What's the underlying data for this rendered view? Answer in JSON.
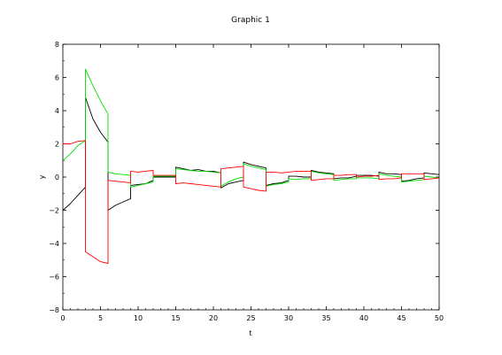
{
  "chart_data": {
    "type": "line",
    "title": "Graphic 1",
    "xlabel": "t",
    "ylabel": "y",
    "xlim": [
      0,
      50
    ],
    "ylim": [
      -8,
      8
    ],
    "x_ticks": [
      0,
      5,
      10,
      15,
      20,
      25,
      30,
      35,
      40,
      45,
      50
    ],
    "y_ticks": [
      -8,
      -6,
      -4,
      -2,
      0,
      2,
      4,
      6,
      8
    ],
    "grid": false,
    "legend": "none",
    "series": [
      {
        "color": "#000000",
        "points": [
          [
            0,
            -2.0
          ],
          [
            1,
            -1.6
          ],
          [
            2,
            -1.1
          ],
          [
            3,
            -0.6
          ],
          [
            3,
            4.8
          ],
          [
            4,
            3.5
          ],
          [
            5,
            2.7
          ],
          [
            6,
            2.1
          ],
          [
            6,
            -2.0
          ],
          [
            7,
            -1.7
          ],
          [
            8,
            -1.5
          ],
          [
            9,
            -1.3
          ],
          [
            9,
            -0.5
          ],
          [
            10,
            -0.45
          ],
          [
            11,
            -0.4
          ],
          [
            12,
            -0.2
          ],
          [
            12,
            0.0
          ],
          [
            13,
            0.0
          ],
          [
            14,
            0.0
          ],
          [
            15,
            0.0
          ],
          [
            15,
            0.6
          ],
          [
            16,
            0.5
          ],
          [
            17,
            0.4
          ],
          [
            18,
            0.45
          ],
          [
            19,
            0.35
          ],
          [
            20,
            0.35
          ],
          [
            21,
            0.25
          ],
          [
            21,
            -0.65
          ],
          [
            22,
            -0.4
          ],
          [
            23,
            -0.3
          ],
          [
            24,
            -0.2
          ],
          [
            24,
            0.9
          ],
          [
            25,
            0.75
          ],
          [
            26,
            0.65
          ],
          [
            27,
            0.55
          ],
          [
            27,
            -0.5
          ],
          [
            28,
            -0.4
          ],
          [
            29,
            -0.35
          ],
          [
            30,
            -0.2
          ],
          [
            30,
            0.05
          ],
          [
            31,
            0.05
          ],
          [
            32,
            0.0
          ],
          [
            33,
            0.0
          ],
          [
            33,
            0.4
          ],
          [
            34,
            0.3
          ],
          [
            35,
            0.25
          ],
          [
            36,
            0.2
          ],
          [
            36,
            -0.1
          ],
          [
            37,
            -0.05
          ],
          [
            38,
            -0.05
          ],
          [
            39,
            0.05
          ],
          [
            39,
            0.1
          ],
          [
            40,
            0.1
          ],
          [
            41,
            0.1
          ],
          [
            42,
            0.05
          ],
          [
            42,
            0.3
          ],
          [
            43,
            0.2
          ],
          [
            44,
            0.2
          ],
          [
            45,
            0.15
          ],
          [
            45,
            -0.25
          ],
          [
            46,
            -0.2
          ],
          [
            47,
            -0.1
          ],
          [
            48,
            -0.05
          ],
          [
            48,
            0.25
          ],
          [
            49,
            0.2
          ],
          [
            50,
            0.15
          ]
        ]
      },
      {
        "color": "#00e000",
        "points": [
          [
            0,
            1.0
          ],
          [
            1,
            1.4
          ],
          [
            2,
            1.9
          ],
          [
            3,
            2.2
          ],
          [
            3,
            6.5
          ],
          [
            4,
            5.5
          ],
          [
            5,
            4.6
          ],
          [
            6,
            3.8
          ],
          [
            6,
            0.3
          ],
          [
            7,
            0.2
          ],
          [
            8,
            0.15
          ],
          [
            9,
            0.1
          ],
          [
            9,
            -0.6
          ],
          [
            10,
            -0.5
          ],
          [
            11,
            -0.4
          ],
          [
            12,
            -0.3
          ],
          [
            12,
            0.05
          ],
          [
            13,
            0.05
          ],
          [
            14,
            0.05
          ],
          [
            15,
            0.05
          ],
          [
            15,
            0.5
          ],
          [
            16,
            0.45
          ],
          [
            17,
            0.4
          ],
          [
            18,
            0.35
          ],
          [
            19,
            0.35
          ],
          [
            20,
            0.3
          ],
          [
            21,
            0.25
          ],
          [
            21,
            -0.55
          ],
          [
            22,
            -0.3
          ],
          [
            23,
            -0.1
          ],
          [
            24,
            0.0
          ],
          [
            24,
            0.8
          ],
          [
            25,
            0.65
          ],
          [
            26,
            0.55
          ],
          [
            27,
            0.45
          ],
          [
            27,
            -0.55
          ],
          [
            28,
            -0.45
          ],
          [
            29,
            -0.4
          ],
          [
            30,
            -0.3
          ],
          [
            30,
            -0.1
          ],
          [
            31,
            -0.15
          ],
          [
            32,
            -0.1
          ],
          [
            33,
            -0.1
          ],
          [
            33,
            0.35
          ],
          [
            34,
            0.25
          ],
          [
            35,
            0.2
          ],
          [
            36,
            0.15
          ],
          [
            36,
            -0.2
          ],
          [
            37,
            -0.15
          ],
          [
            38,
            -0.1
          ],
          [
            39,
            -0.1
          ],
          [
            39,
            -0.05
          ],
          [
            40,
            -0.05
          ],
          [
            41,
            -0.05
          ],
          [
            42,
            -0.1
          ],
          [
            42,
            0.2
          ],
          [
            43,
            0.1
          ],
          [
            44,
            0.05
          ],
          [
            45,
            0.0
          ],
          [
            45,
            -0.3
          ],
          [
            46,
            -0.25
          ],
          [
            47,
            -0.2
          ],
          [
            48,
            -0.15
          ],
          [
            48,
            0.05
          ],
          [
            49,
            0.0
          ],
          [
            50,
            -0.05
          ]
        ]
      },
      {
        "color": "#ff0000",
        "points": [
          [
            0,
            2.0
          ],
          [
            1,
            2.0
          ],
          [
            2,
            2.15
          ],
          [
            3,
            2.2
          ],
          [
            3,
            -4.5
          ],
          [
            4,
            -4.8
          ],
          [
            5,
            -5.1
          ],
          [
            6,
            -5.2
          ],
          [
            6,
            -0.2
          ],
          [
            7,
            -0.25
          ],
          [
            8,
            -0.3
          ],
          [
            9,
            -0.35
          ],
          [
            9,
            0.35
          ],
          [
            10,
            0.3
          ],
          [
            11,
            0.35
          ],
          [
            12,
            0.4
          ],
          [
            12,
            0.1
          ],
          [
            13,
            0.1
          ],
          [
            14,
            0.1
          ],
          [
            15,
            0.1
          ],
          [
            15,
            -0.4
          ],
          [
            16,
            -0.35
          ],
          [
            17,
            -0.4
          ],
          [
            18,
            -0.45
          ],
          [
            19,
            -0.5
          ],
          [
            20,
            -0.55
          ],
          [
            21,
            -0.6
          ],
          [
            21,
            0.5
          ],
          [
            22,
            0.55
          ],
          [
            23,
            0.6
          ],
          [
            24,
            0.65
          ],
          [
            24,
            -0.6
          ],
          [
            25,
            -0.7
          ],
          [
            26,
            -0.8
          ],
          [
            27,
            -0.85
          ],
          [
            27,
            0.3
          ],
          [
            28,
            0.3
          ],
          [
            29,
            0.25
          ],
          [
            30,
            0.3
          ],
          [
            30,
            0.3
          ],
          [
            31,
            0.35
          ],
          [
            32,
            0.35
          ],
          [
            33,
            0.35
          ],
          [
            33,
            -0.2
          ],
          [
            34,
            -0.15
          ],
          [
            35,
            -0.1
          ],
          [
            36,
            -0.1
          ],
          [
            36,
            0.1
          ],
          [
            37,
            0.1
          ],
          [
            38,
            0.15
          ],
          [
            39,
            0.15
          ],
          [
            39,
            0.0
          ],
          [
            40,
            0.05
          ],
          [
            41,
            0.05
          ],
          [
            42,
            0.1
          ],
          [
            42,
            -0.15
          ],
          [
            43,
            -0.1
          ],
          [
            44,
            -0.1
          ],
          [
            45,
            -0.05
          ],
          [
            45,
            0.2
          ],
          [
            46,
            0.2
          ],
          [
            47,
            0.2
          ],
          [
            48,
            0.2
          ],
          [
            48,
            -0.15
          ],
          [
            49,
            -0.1
          ],
          [
            50,
            -0.05
          ]
        ]
      }
    ]
  }
}
